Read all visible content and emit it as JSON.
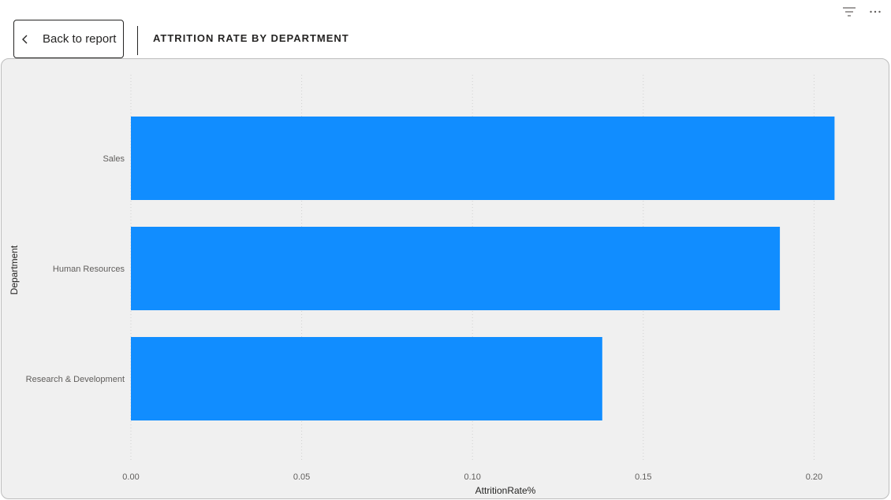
{
  "header": {
    "back_label": "Back to report",
    "title": "ATTRITION RATE BY DEPARTMENT"
  },
  "toolbar": {
    "icons": [
      "filter-icon",
      "more-options-icon"
    ]
  },
  "colors": {
    "bar": "#118dff",
    "panel_bg": "#f0f0f0",
    "grid": "#d0d0d0"
  },
  "chart_data": {
    "type": "bar",
    "orientation": "horizontal",
    "title": "ATTRITION RATE BY DEPARTMENT",
    "categories": [
      "Sales",
      "Human Resources",
      "Research & Development"
    ],
    "values": [
      0.206,
      0.19,
      0.138
    ],
    "xlabel": "AttritionRate%",
    "ylabel": "Department",
    "xlim": [
      0,
      0.22
    ],
    "xticks": [
      0.0,
      0.05,
      0.1,
      0.15,
      0.2
    ],
    "xtick_labels": [
      "0.00",
      "0.05",
      "0.10",
      "0.15",
      "0.20"
    ],
    "grid": "vertical dotted",
    "legend": "none"
  }
}
